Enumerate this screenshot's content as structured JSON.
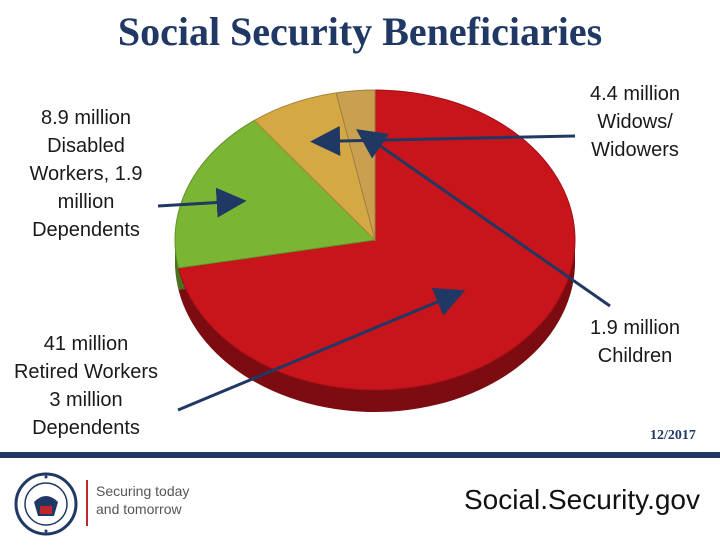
{
  "slide": {
    "title": "Social Security Beneficiaries",
    "date": "12/2017"
  },
  "chart_data": {
    "type": "pie",
    "title": "Social Security Beneficiaries",
    "unit": "million",
    "slices": [
      {
        "label": "Retired Workers and Dependents",
        "value": 44.0,
        "color": "#c8141b"
      },
      {
        "label": "Disabled Workers and Dependents",
        "value": 10.8,
        "color": "#7ab534"
      },
      {
        "label": "Widows/Widowers",
        "value": 4.4,
        "color": "#d4a843"
      },
      {
        "label": "Children",
        "value": 1.9,
        "color": "#c9a050"
      }
    ]
  },
  "callouts": {
    "disabled": [
      "8.9 million",
      "Disabled",
      "Workers, 1.9",
      "million",
      "Dependents"
    ],
    "retired": [
      "41 million",
      "Retired Workers",
      "3 million",
      "Dependents"
    ],
    "widows": [
      "4.4 million",
      "Widows/",
      "Widowers"
    ],
    "children": [
      "1.9 million",
      "Children"
    ]
  },
  "footer": {
    "tagline_line1": "Securing today",
    "tagline_line2": "and tomorrow",
    "website": "Social.Security.gov",
    "seal_colors": {
      "ring": "#1f3864",
      "accent": "#c0272d"
    }
  }
}
